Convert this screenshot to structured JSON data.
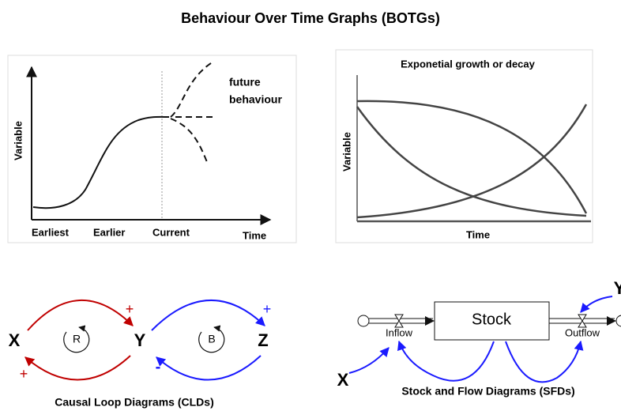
{
  "header": {
    "title": "Behaviour Over Time Graphs (BOTGs)"
  },
  "panels": [
    {
      "y_label": "Variable",
      "annotation": [
        "future",
        "behaviour"
      ],
      "x_labels": [
        "Earliest",
        "Earlier",
        "Current",
        "Time"
      ]
    },
    {
      "title": "Exponetial growth or decay",
      "y_label": "Variable",
      "x_label": "Time"
    },
    {
      "nodes": [
        "X",
        "Y",
        "Z"
      ],
      "loops": [
        "R",
        "B"
      ],
      "polarities": [
        "+",
        "+",
        "+",
        "-"
      ],
      "caption": "Causal Loop Diagrams (CLDs)"
    },
    {
      "stock": "Stock",
      "flows": [
        "Inflow",
        "Outflow"
      ],
      "inputs": [
        "X",
        "Y"
      ],
      "caption": "Stock and Flow Diagrams (SFDs)"
    }
  ]
}
